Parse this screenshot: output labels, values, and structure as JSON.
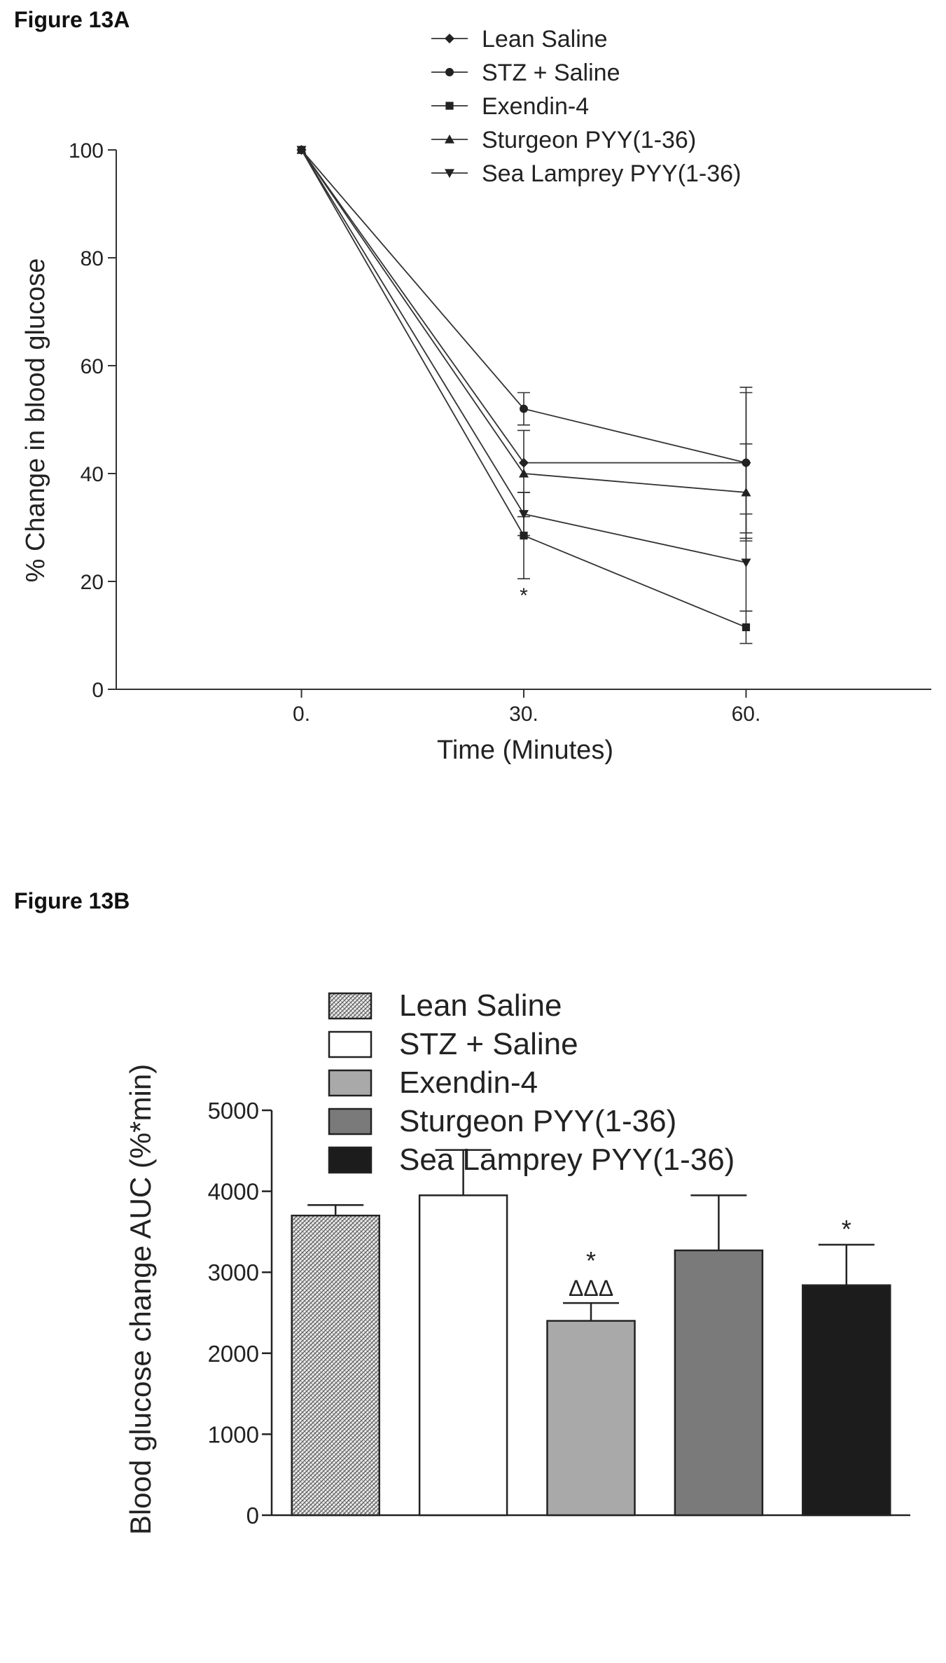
{
  "figure_a": {
    "label": "Figure 13A"
  },
  "figure_b": {
    "label": "Figure 13B"
  },
  "chart_data": [
    {
      "type": "line",
      "xlabel": "Time (Minutes)",
      "ylabel": "% Change in blood glucose",
      "x": [
        0,
        30,
        60
      ],
      "x_tick_labels": [
        "0.",
        "30.",
        "60."
      ],
      "xlim": [
        -25,
        85
      ],
      "ylim": [
        0,
        100
      ],
      "y_ticks": [
        0,
        20,
        40,
        60,
        80,
        100
      ],
      "legend_placement": "top-right",
      "line_color": "#333333",
      "series": [
        {
          "name": "Lean Saline",
          "marker": "diamond",
          "values": [
            100,
            42,
            42
          ],
          "errors": [
            0,
            0,
            13
          ]
        },
        {
          "name": "STZ + Saline",
          "marker": "circle",
          "values": [
            100,
            52,
            42
          ],
          "errors": [
            0,
            3,
            14
          ]
        },
        {
          "name": "Exendin-4",
          "marker": "square",
          "values": [
            100,
            28.5,
            11.5
          ],
          "errors": [
            0,
            8,
            3
          ]
        },
        {
          "name": "Sturgeon PYY(1-36)",
          "marker": "triangle-up",
          "values": [
            100,
            40,
            36.5
          ],
          "errors": [
            0,
            8,
            9
          ]
        },
        {
          "name": "Sea Lamprey PYY(1-36)",
          "marker": "triangle-down",
          "values": [
            100,
            32.5,
            23.5
          ],
          "errors": [
            0,
            4,
            9
          ]
        }
      ],
      "annotations": [
        {
          "text": "*",
          "x": 30,
          "series": "Exendin-4"
        }
      ]
    },
    {
      "type": "bar",
      "ylabel": "Blood glucose change AUC (%*min)",
      "ylim": [
        0,
        5000
      ],
      "y_ticks": [
        0,
        1000,
        2000,
        3000,
        4000,
        5000
      ],
      "legend_placement": "top-center",
      "categories": [
        "Lean Saline",
        "STZ + Saline",
        "Exendin-4",
        "Sturgeon PYY(1-36)",
        "Sea Lamprey PYY(1-36)"
      ],
      "values": [
        3700,
        3950,
        2400,
        3270,
        2840
      ],
      "errors": [
        130,
        560,
        220,
        680,
        500
      ],
      "fills": [
        "hatched",
        "#ffffff",
        "#a9a9a9",
        "#7a7a7a",
        "#1c1c1c"
      ],
      "annotations": [
        {
          "category": "Exendin-4",
          "lines": [
            "*",
            "ΔΔΔ"
          ]
        },
        {
          "category": "Sea Lamprey PYY(1-36)",
          "lines": [
            "*"
          ]
        }
      ]
    }
  ]
}
